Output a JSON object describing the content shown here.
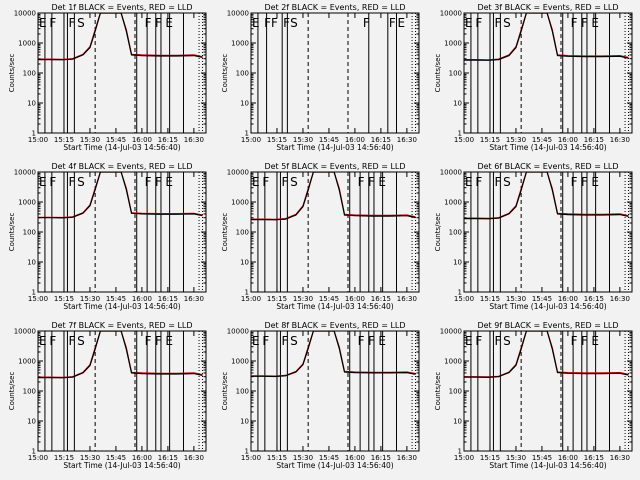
{
  "figure": {
    "x_tick_labels": [
      "15:00",
      "15:15",
      "15:30",
      "15:45",
      "16:00",
      "16:15",
      "16:30"
    ],
    "xlabel": "Start Time (14-Jul-03 14:56:40)",
    "ylabel": "Counts/sec",
    "y_tick_labels": [
      "1",
      "10",
      "100",
      "1000",
      "10000"
    ],
    "colors": {
      "events": "#000000",
      "lld": "#cc0000",
      "background": "#f2f2f2"
    }
  },
  "chart_data": [
    {
      "type": "line",
      "title": "Det 1f BLACK = Events, RED = LLD",
      "xlabel": "Start Time (14-Jul-03 14:56:40)",
      "ylabel": "Counts/sec",
      "ylog": true,
      "ylim": [
        1,
        10000
      ],
      "xlim": [
        "15:00",
        "16:37"
      ],
      "x": [
        "15:00",
        "15:07",
        "15:14",
        "15:20",
        "15:26",
        "15:30",
        "15:33",
        "15:36",
        "15:48",
        "15:51",
        "15:54",
        "16:00",
        "16:10",
        "16:20",
        "16:30",
        "16:35"
      ],
      "series": [
        {
          "name": "Events",
          "color": "#000000",
          "values": [
            280,
            280,
            275,
            290,
            400,
            700,
            2500,
            12000,
            12000,
            2500,
            400,
            380,
            370,
            370,
            380,
            330
          ]
        },
        {
          "name": "LLD",
          "color": "#cc0000",
          "values": [
            290,
            290,
            285,
            300,
            420,
            750,
            2800,
            14000,
            14000,
            2800,
            420,
            400,
            390,
            390,
            400,
            350
          ]
        }
      ],
      "solid_markers": [
        "15:04",
        "15:08",
        "15:15",
        "15:17",
        "15:21",
        "15:57",
        "16:03",
        "16:08",
        "16:11",
        "16:16",
        "16:24"
      ],
      "dashed_markers": [
        "15:33",
        "15:56"
      ],
      "annotations": [
        {
          "text": "E",
          "at": "15:00"
        },
        {
          "text": "F",
          "at": "15:06"
        },
        {
          "text": "F",
          "at": "15:17"
        },
        {
          "text": "S",
          "at": "15:22"
        },
        {
          "text": "F",
          "at": "16:01"
        },
        {
          "text": "F",
          "at": "16:07"
        },
        {
          "text": "E",
          "at": "16:13"
        }
      ]
    },
    {
      "type": "line",
      "title": "Det 2f BLACK = Events, RED = LLD",
      "xlabel": "Start Time (14-Jul-03 14:56:40)",
      "ylabel": "Counts/sec",
      "ylog": true,
      "ylim": [
        1,
        10000
      ],
      "xlim": [
        "15:00",
        "16:37"
      ],
      "x": [],
      "series": [],
      "solid_markers": [
        "15:04",
        "15:09",
        "15:18",
        "15:21",
        "16:08",
        "16:19",
        "16:24"
      ],
      "dashed_markers": [
        "15:33",
        "15:56"
      ],
      "annotations": [
        {
          "text": "E",
          "at": "15:00"
        },
        {
          "text": "F",
          "at": "15:07"
        },
        {
          "text": "F",
          "at": "15:11"
        },
        {
          "text": "F",
          "at": "15:18"
        },
        {
          "text": "S",
          "at": "15:22"
        },
        {
          "text": "F",
          "at": "16:04"
        },
        {
          "text": "F",
          "at": "16:19"
        },
        {
          "text": "E",
          "at": "16:24"
        }
      ]
    },
    {
      "type": "line",
      "title": "Det 3f BLACK = Events, RED = LLD",
      "xlabel": "Start Time (14-Jul-03 14:56:40)",
      "ylabel": "Counts/sec",
      "ylog": true,
      "ylim": [
        1,
        10000
      ],
      "xlim": [
        "15:00",
        "16:37"
      ],
      "x": [
        "15:00",
        "15:07",
        "15:14",
        "15:20",
        "15:26",
        "15:30",
        "15:33",
        "15:36",
        "15:48",
        "15:51",
        "15:54",
        "16:00",
        "16:10",
        "16:20",
        "16:30",
        "16:35"
      ],
      "series": [
        {
          "name": "Events",
          "color": "#000000",
          "values": [
            270,
            270,
            265,
            280,
            380,
            700,
            2500,
            12000,
            12000,
            2500,
            380,
            360,
            350,
            350,
            360,
            310
          ]
        },
        {
          "name": "LLD",
          "color": "#cc0000",
          "values": [
            280,
            280,
            275,
            290,
            400,
            750,
            2800,
            14000,
            14000,
            2800,
            400,
            380,
            370,
            370,
            380,
            330
          ]
        }
      ],
      "solid_markers": [
        "15:04",
        "15:08",
        "15:15",
        "15:17",
        "15:21",
        "15:57",
        "16:03",
        "16:08",
        "16:11",
        "16:16",
        "16:24"
      ],
      "dashed_markers": [
        "15:33",
        "15:56"
      ],
      "annotations": [
        {
          "text": "E",
          "at": "15:00"
        },
        {
          "text": "F",
          "at": "15:06"
        },
        {
          "text": "F",
          "at": "15:17"
        },
        {
          "text": "S",
          "at": "15:22"
        },
        {
          "text": "F",
          "at": "16:01"
        },
        {
          "text": "F",
          "at": "16:07"
        },
        {
          "text": "E",
          "at": "16:13"
        }
      ]
    },
    {
      "type": "line",
      "title": "Det 4f BLACK = Events, RED = LLD",
      "xlabel": "Start Time (14-Jul-03 14:56:40)",
      "ylabel": "Counts/sec",
      "ylog": true,
      "ylim": [
        1,
        10000
      ],
      "xlim": [
        "15:00",
        "16:37"
      ],
      "x": [
        "15:00",
        "15:07",
        "15:14",
        "15:20",
        "15:26",
        "15:30",
        "15:33",
        "15:36",
        "15:48",
        "15:51",
        "15:54",
        "16:00",
        "16:10",
        "16:20",
        "16:30",
        "16:35"
      ],
      "series": [
        {
          "name": "Events",
          "color": "#000000",
          "values": [
            300,
            300,
            295,
            310,
            420,
            750,
            2600,
            12000,
            12000,
            2600,
            420,
            400,
            390,
            390,
            400,
            350
          ]
        },
        {
          "name": "LLD",
          "color": "#cc0000",
          "values": [
            310,
            310,
            305,
            320,
            440,
            800,
            2900,
            14000,
            14000,
            2900,
            440,
            420,
            410,
            410,
            420,
            370
          ]
        }
      ],
      "solid_markers": [
        "15:04",
        "15:08",
        "15:15",
        "15:17",
        "15:21",
        "15:57",
        "16:03",
        "16:08",
        "16:11",
        "16:16",
        "16:24"
      ],
      "dashed_markers": [
        "15:33",
        "15:56"
      ],
      "annotations": [
        {
          "text": "E",
          "at": "15:00"
        },
        {
          "text": "F",
          "at": "15:06"
        },
        {
          "text": "F",
          "at": "15:17"
        },
        {
          "text": "S",
          "at": "15:22"
        },
        {
          "text": "F",
          "at": "16:01"
        },
        {
          "text": "F",
          "at": "16:07"
        },
        {
          "text": "E",
          "at": "16:13"
        }
      ]
    },
    {
      "type": "line",
      "title": "Det 5f BLACK = Events, RED = LLD",
      "xlabel": "Start Time (14-Jul-03 14:56:40)",
      "ylabel": "Counts/sec",
      "ylog": true,
      "ylim": [
        1,
        10000
      ],
      "xlim": [
        "15:00",
        "16:37"
      ],
      "x": [
        "15:00",
        "15:07",
        "15:14",
        "15:20",
        "15:26",
        "15:30",
        "15:33",
        "15:36",
        "15:48",
        "15:51",
        "15:54",
        "16:00",
        "16:10",
        "16:20",
        "16:30",
        "16:35"
      ],
      "series": [
        {
          "name": "Events",
          "color": "#000000",
          "values": [
            260,
            260,
            255,
            270,
            370,
            700,
            2500,
            12000,
            12000,
            2500,
            370,
            350,
            340,
            340,
            350,
            300
          ]
        },
        {
          "name": "LLD",
          "color": "#cc0000",
          "values": [
            270,
            270,
            265,
            280,
            390,
            750,
            2800,
            14000,
            14000,
            2800,
            390,
            370,
            360,
            360,
            370,
            320
          ]
        }
      ],
      "solid_markers": [
        "15:04",
        "15:08",
        "15:15",
        "15:17",
        "15:21",
        "15:57",
        "16:03",
        "16:08",
        "16:11",
        "16:16",
        "16:24"
      ],
      "dashed_markers": [
        "15:33",
        "15:56"
      ],
      "annotations": [
        {
          "text": "E",
          "at": "15:00"
        },
        {
          "text": "F",
          "at": "15:06"
        },
        {
          "text": "F",
          "at": "15:17"
        },
        {
          "text": "S",
          "at": "15:22"
        },
        {
          "text": "F",
          "at": "16:01"
        },
        {
          "text": "F",
          "at": "16:07"
        },
        {
          "text": "E",
          "at": "16:13"
        }
      ]
    },
    {
      "type": "line",
      "title": "Det 6f BLACK = Events, RED = LLD",
      "xlabel": "Start Time (14-Jul-03 14:56:40)",
      "ylabel": "Counts/sec",
      "ylog": true,
      "ylim": [
        1,
        10000
      ],
      "xlim": [
        "15:00",
        "16:37"
      ],
      "x": [
        "15:00",
        "15:07",
        "15:14",
        "15:20",
        "15:26",
        "15:30",
        "15:33",
        "15:36",
        "15:48",
        "15:51",
        "15:54",
        "16:00",
        "16:10",
        "16:20",
        "16:30",
        "16:35"
      ],
      "series": [
        {
          "name": "Events",
          "color": "#000000",
          "values": [
            280,
            280,
            275,
            290,
            400,
            700,
            2500,
            12000,
            12000,
            2500,
            400,
            380,
            370,
            370,
            380,
            330
          ]
        },
        {
          "name": "LLD",
          "color": "#cc0000",
          "values": [
            290,
            290,
            285,
            300,
            420,
            750,
            2800,
            14000,
            14000,
            2800,
            420,
            400,
            390,
            390,
            400,
            350
          ]
        }
      ],
      "solid_markers": [
        "15:04",
        "15:08",
        "15:15",
        "15:17",
        "15:21",
        "15:57",
        "16:03",
        "16:08",
        "16:11",
        "16:16",
        "16:24"
      ],
      "dashed_markers": [
        "15:33",
        "15:56"
      ],
      "annotations": [
        {
          "text": "E",
          "at": "15:00"
        },
        {
          "text": "F",
          "at": "15:06"
        },
        {
          "text": "F",
          "at": "15:17"
        },
        {
          "text": "S",
          "at": "15:22"
        },
        {
          "text": "F",
          "at": "16:01"
        },
        {
          "text": "F",
          "at": "16:07"
        },
        {
          "text": "E",
          "at": "16:13"
        }
      ]
    },
    {
      "type": "line",
      "title": "Det 7f BLACK = Events, RED = LLD",
      "xlabel": "Start Time (14-Jul-03 14:56:40)",
      "ylabel": "Counts/sec",
      "ylog": true,
      "ylim": [
        1,
        10000
      ],
      "xlim": [
        "15:00",
        "16:37"
      ],
      "x": [
        "15:00",
        "15:07",
        "15:14",
        "15:20",
        "15:26",
        "15:30",
        "15:33",
        "15:36",
        "15:48",
        "15:51",
        "15:54",
        "16:00",
        "16:10",
        "16:20",
        "16:30",
        "16:35"
      ],
      "series": [
        {
          "name": "Events",
          "color": "#000000",
          "values": [
            280,
            280,
            275,
            290,
            400,
            700,
            2500,
            12000,
            12000,
            2500,
            400,
            380,
            370,
            370,
            380,
            330
          ]
        },
        {
          "name": "LLD",
          "color": "#cc0000",
          "values": [
            290,
            290,
            285,
            300,
            420,
            750,
            2800,
            14000,
            14000,
            2800,
            420,
            400,
            390,
            390,
            400,
            350
          ]
        }
      ],
      "solid_markers": [
        "15:04",
        "15:08",
        "15:15",
        "15:17",
        "15:21",
        "15:57",
        "16:03",
        "16:08",
        "16:11",
        "16:16",
        "16:24"
      ],
      "dashed_markers": [
        "15:33",
        "15:56"
      ],
      "annotations": [
        {
          "text": "E",
          "at": "15:00"
        },
        {
          "text": "F",
          "at": "15:06"
        },
        {
          "text": "F",
          "at": "15:17"
        },
        {
          "text": "S",
          "at": "15:22"
        },
        {
          "text": "F",
          "at": "16:01"
        },
        {
          "text": "F",
          "at": "16:07"
        },
        {
          "text": "E",
          "at": "16:13"
        }
      ]
    },
    {
      "type": "line",
      "title": "Det 8f BLACK = Events, RED = LLD",
      "xlabel": "Start Time (14-Jul-03 14:56:40)",
      "ylabel": "Counts/sec",
      "ylog": true,
      "ylim": [
        1,
        10000
      ],
      "xlim": [
        "15:00",
        "16:37"
      ],
      "x": [
        "15:00",
        "15:07",
        "15:14",
        "15:20",
        "15:26",
        "15:30",
        "15:33",
        "15:36",
        "15:48",
        "15:51",
        "15:54",
        "16:00",
        "16:10",
        "16:20",
        "16:30",
        "16:35"
      ],
      "series": [
        {
          "name": "Events",
          "color": "#000000",
          "values": [
            310,
            310,
            305,
            320,
            430,
            760,
            2600,
            12000,
            12000,
            2600,
            430,
            410,
            400,
            400,
            410,
            360
          ]
        },
        {
          "name": "LLD",
          "color": "#cc0000",
          "values": [
            320,
            320,
            315,
            330,
            450,
            800,
            2900,
            14000,
            14000,
            2900,
            450,
            430,
            420,
            420,
            430,
            380
          ]
        }
      ],
      "solid_markers": [
        "15:04",
        "15:08",
        "15:15",
        "15:17",
        "15:21",
        "15:57",
        "16:03",
        "16:08",
        "16:11",
        "16:16",
        "16:24"
      ],
      "dashed_markers": [
        "15:33",
        "15:56"
      ],
      "annotations": [
        {
          "text": "E",
          "at": "15:00"
        },
        {
          "text": "F",
          "at": "15:06"
        },
        {
          "text": "F",
          "at": "15:17"
        },
        {
          "text": "S",
          "at": "15:22"
        },
        {
          "text": "F",
          "at": "16:01"
        },
        {
          "text": "F",
          "at": "16:07"
        },
        {
          "text": "E",
          "at": "16:13"
        }
      ]
    },
    {
      "type": "line",
      "title": "Det 9f BLACK = Events, RED = LLD",
      "xlabel": "Start Time (14-Jul-03 14:56:40)",
      "ylabel": "Counts/sec",
      "ylog": true,
      "ylim": [
        1,
        10000
      ],
      "xlim": [
        "15:00",
        "16:37"
      ],
      "x": [
        "15:00",
        "15:07",
        "15:14",
        "15:20",
        "15:26",
        "15:30",
        "15:33",
        "15:36",
        "15:48",
        "15:51",
        "15:54",
        "16:00",
        "16:10",
        "16:20",
        "16:30",
        "16:35"
      ],
      "series": [
        {
          "name": "Events",
          "color": "#000000",
          "values": [
            290,
            290,
            285,
            300,
            410,
            720,
            2500,
            12000,
            12000,
            2500,
            410,
            390,
            380,
            380,
            390,
            340
          ]
        },
        {
          "name": "LLD",
          "color": "#cc0000",
          "values": [
            300,
            300,
            295,
            310,
            430,
            770,
            2800,
            14000,
            14000,
            2800,
            430,
            410,
            400,
            400,
            410,
            360
          ]
        }
      ],
      "solid_markers": [
        "15:04",
        "15:08",
        "15:15",
        "15:17",
        "15:21",
        "15:57",
        "16:03",
        "16:08",
        "16:11",
        "16:16",
        "16:24"
      ],
      "dashed_markers": [
        "15:33",
        "15:56"
      ],
      "annotations": [
        {
          "text": "E",
          "at": "15:00"
        },
        {
          "text": "F",
          "at": "15:06"
        },
        {
          "text": "F",
          "at": "15:17"
        },
        {
          "text": "S",
          "at": "15:22"
        },
        {
          "text": "F",
          "at": "16:01"
        },
        {
          "text": "F",
          "at": "16:07"
        },
        {
          "text": "E",
          "at": "16:13"
        }
      ]
    }
  ]
}
